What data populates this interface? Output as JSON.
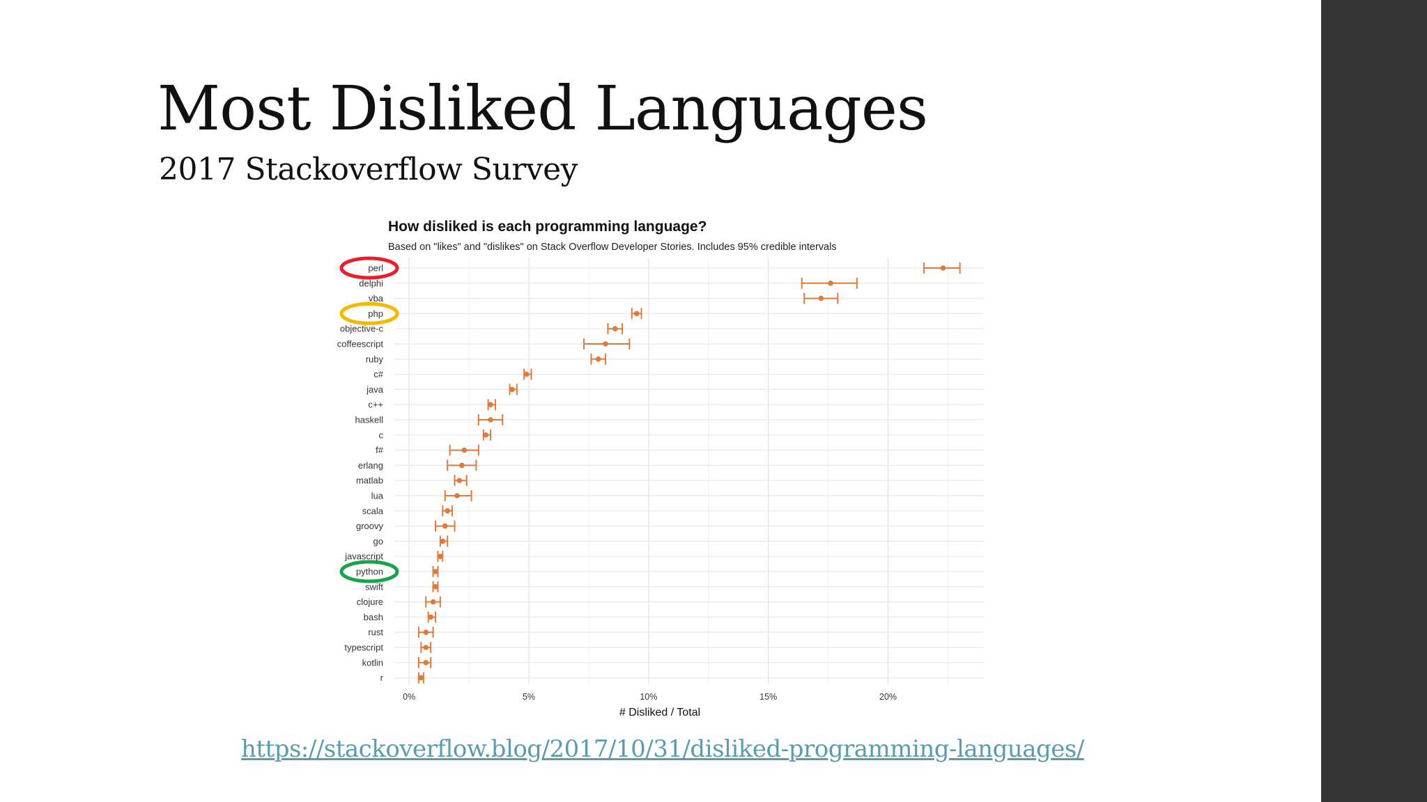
{
  "slide": {
    "title": "Most Disliked Languages",
    "subtitle": "2017 Stackoverflow Survey",
    "link": "https://stackoverflow.blog/2017/10/31/disliked-programming-languages/"
  },
  "highlights": [
    {
      "category": "perl",
      "color": "#e8202a"
    },
    {
      "category": "php",
      "color": "#f5b800"
    },
    {
      "category": "python",
      "color": "#1aa34a"
    }
  ],
  "colors": {
    "accent": "#e07a3c",
    "sidebar": "#353535",
    "link": "#5b9bb0"
  },
  "chart_data": {
    "type": "scatter",
    "title": "How disliked is each programming language?",
    "subtitle": "Based on \"likes\" and \"dislikes\" on Stack Overflow Developer Stories. Includes 95% credible intervals",
    "xlabel": "# Disliked / Total",
    "ylabel": "",
    "xlim": [
      -0.5,
      24
    ],
    "xticks": [
      0,
      5,
      10,
      15,
      20
    ],
    "xtick_labels": [
      "0%",
      "5%",
      "10%",
      "15%",
      "20%"
    ],
    "grid": true,
    "categories": [
      "perl",
      "delphi",
      "vba",
      "php",
      "objective-c",
      "coffeescript",
      "ruby",
      "c#",
      "java",
      "c++",
      "haskell",
      "c",
      "f#",
      "erlang",
      "matlab",
      "lua",
      "scala",
      "groovy",
      "go",
      "javascript",
      "python",
      "swift",
      "clojure",
      "bash",
      "rust",
      "typescript",
      "kotlin",
      "r"
    ],
    "values": [
      22.3,
      17.6,
      17.2,
      9.5,
      8.6,
      8.2,
      7.9,
      4.9,
      4.3,
      3.4,
      3.4,
      3.2,
      2.3,
      2.2,
      2.1,
      2.0,
      1.6,
      1.5,
      1.4,
      1.3,
      1.1,
      1.1,
      1.0,
      0.9,
      0.7,
      0.7,
      0.7,
      0.5
    ],
    "ci_low": [
      21.5,
      16.4,
      16.5,
      9.3,
      8.3,
      7.3,
      7.6,
      4.8,
      4.2,
      3.3,
      2.9,
      3.1,
      1.7,
      1.6,
      1.9,
      1.5,
      1.4,
      1.1,
      1.3,
      1.2,
      1.0,
      1.0,
      0.7,
      0.8,
      0.4,
      0.5,
      0.4,
      0.4
    ],
    "ci_high": [
      23.0,
      18.7,
      17.9,
      9.7,
      8.9,
      9.2,
      8.2,
      5.1,
      4.5,
      3.6,
      3.9,
      3.4,
      2.9,
      2.8,
      2.4,
      2.6,
      1.8,
      1.9,
      1.6,
      1.4,
      1.2,
      1.2,
      1.3,
      1.1,
      1.0,
      0.9,
      0.9,
      0.6
    ]
  }
}
